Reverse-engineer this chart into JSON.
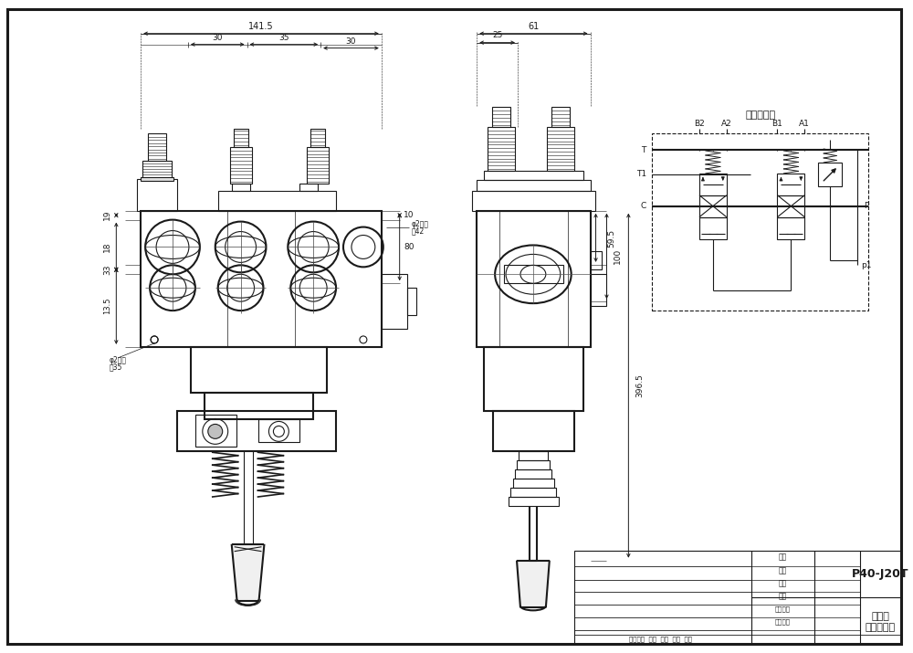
{
  "bg_color": "#ffffff",
  "line_color": "#1a1a1a",
  "model": "P40-J20T",
  "drawing_name_line1": "多路阀",
  "drawing_name_line2": "外型尺寸图",
  "schematic_title": "液压原理图",
  "dims": {
    "top_total": "141.5",
    "top_30L": "30",
    "top_35": "35",
    "top_30R": "30",
    "left_19": "19",
    "left_18": "18",
    "left_33": "33",
    "left_13_5": "13.5",
    "right_80": "80",
    "right_10": "10",
    "hole_top": "φ2螺孔\n高42",
    "hole_bot": "φ2螺孔\n高35",
    "rv_61": "61",
    "rv_25": "25",
    "rv_59_5": "59.5",
    "rv_100": "100",
    "rv_396_5": "396.5"
  },
  "sch": {
    "B2": "B2",
    "A2": "A2",
    "B1": "B1",
    "A1": "A1",
    "T": "T",
    "T1": "T1",
    "C": "C",
    "P": "P",
    "P1": "p1"
  }
}
